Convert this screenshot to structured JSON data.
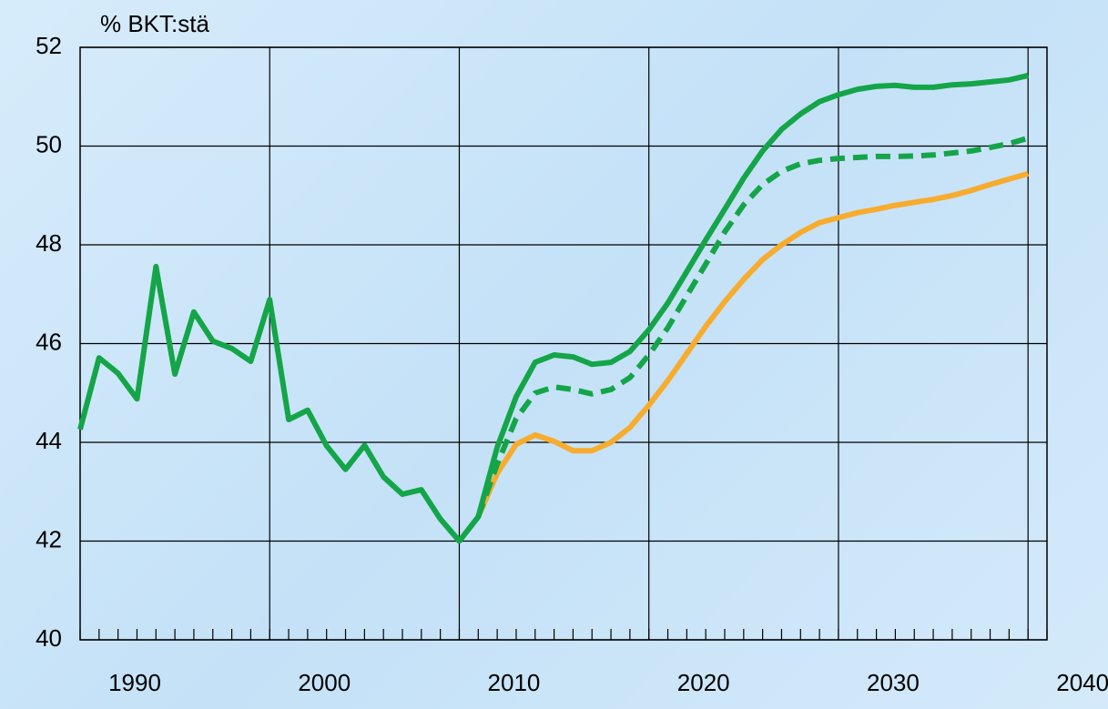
{
  "chart_data": {
    "type": "line",
    "ylabel": "% BKT:stä",
    "x": [
      1990,
      1991,
      1992,
      1993,
      1994,
      1995,
      1996,
      1997,
      1998,
      1999,
      2000,
      2001,
      2002,
      2003,
      2004,
      2005,
      2006,
      2007,
      2008,
      2009,
      2010,
      2011,
      2012,
      2013,
      2014,
      2015,
      2016,
      2017,
      2018,
      2019,
      2020,
      2021,
      2022,
      2023,
      2024,
      2025,
      2026,
      2027,
      2028,
      2029,
      2030,
      2031,
      2032,
      2033,
      2034,
      2035,
      2036,
      2037,
      2038,
      2039,
      2040
    ],
    "series": [
      {
        "color": "#f7ac2e",
        "dash": false,
        "values": [
          null,
          null,
          null,
          null,
          null,
          null,
          null,
          null,
          null,
          null,
          null,
          null,
          null,
          null,
          null,
          null,
          null,
          null,
          null,
          null,
          null,
          42.49,
          43.37,
          43.96,
          44.15,
          44.02,
          43.83,
          43.83,
          44.0,
          44.3,
          44.75,
          45.25,
          45.8,
          46.35,
          46.85,
          47.3,
          47.7,
          48.0,
          48.25,
          48.45,
          48.55,
          48.65,
          48.72,
          48.8,
          48.86,
          48.92,
          49.0,
          49.1,
          49.22,
          49.33,
          49.44
        ]
      },
      {
        "color": "#14a548",
        "dash": true,
        "values": [
          null,
          null,
          null,
          null,
          null,
          null,
          null,
          null,
          null,
          null,
          null,
          null,
          null,
          null,
          null,
          null,
          null,
          null,
          null,
          null,
          null,
          42.49,
          43.56,
          44.48,
          45.0,
          45.12,
          45.07,
          44.98,
          45.07,
          45.31,
          45.77,
          46.32,
          46.97,
          47.61,
          48.26,
          48.81,
          49.22,
          49.49,
          49.64,
          49.71,
          49.75,
          49.77,
          49.79,
          49.79,
          49.8,
          49.82,
          49.86,
          49.9,
          49.97,
          50.05,
          50.16
        ]
      },
      {
        "color": "#14a548",
        "dash": false,
        "values": [
          44.26,
          45.71,
          45.4,
          44.88,
          47.56,
          45.38,
          46.64,
          46.05,
          45.9,
          45.64,
          46.89,
          44.46,
          44.65,
          43.93,
          43.45,
          43.94,
          43.3,
          42.95,
          43.04,
          42.45,
          42.0,
          42.49,
          43.9,
          44.92,
          45.62,
          45.77,
          45.73,
          45.58,
          45.62,
          45.84,
          46.28,
          46.82,
          47.46,
          48.1,
          48.72,
          49.35,
          49.9,
          50.34,
          50.65,
          50.9,
          51.04,
          51.15,
          51.21,
          51.23,
          51.19,
          51.19,
          51.24,
          51.26,
          51.3,
          51.34,
          51.43
        ]
      }
    ],
    "xlim": [
      1990,
      2041
    ],
    "xticks": [
      1990,
      2000,
      2010,
      2020,
      2030,
      2040
    ],
    "ylim": [
      40,
      52
    ],
    "yticks": [
      40,
      42,
      44,
      46,
      48,
      50,
      52
    ],
    "grid": true
  }
}
